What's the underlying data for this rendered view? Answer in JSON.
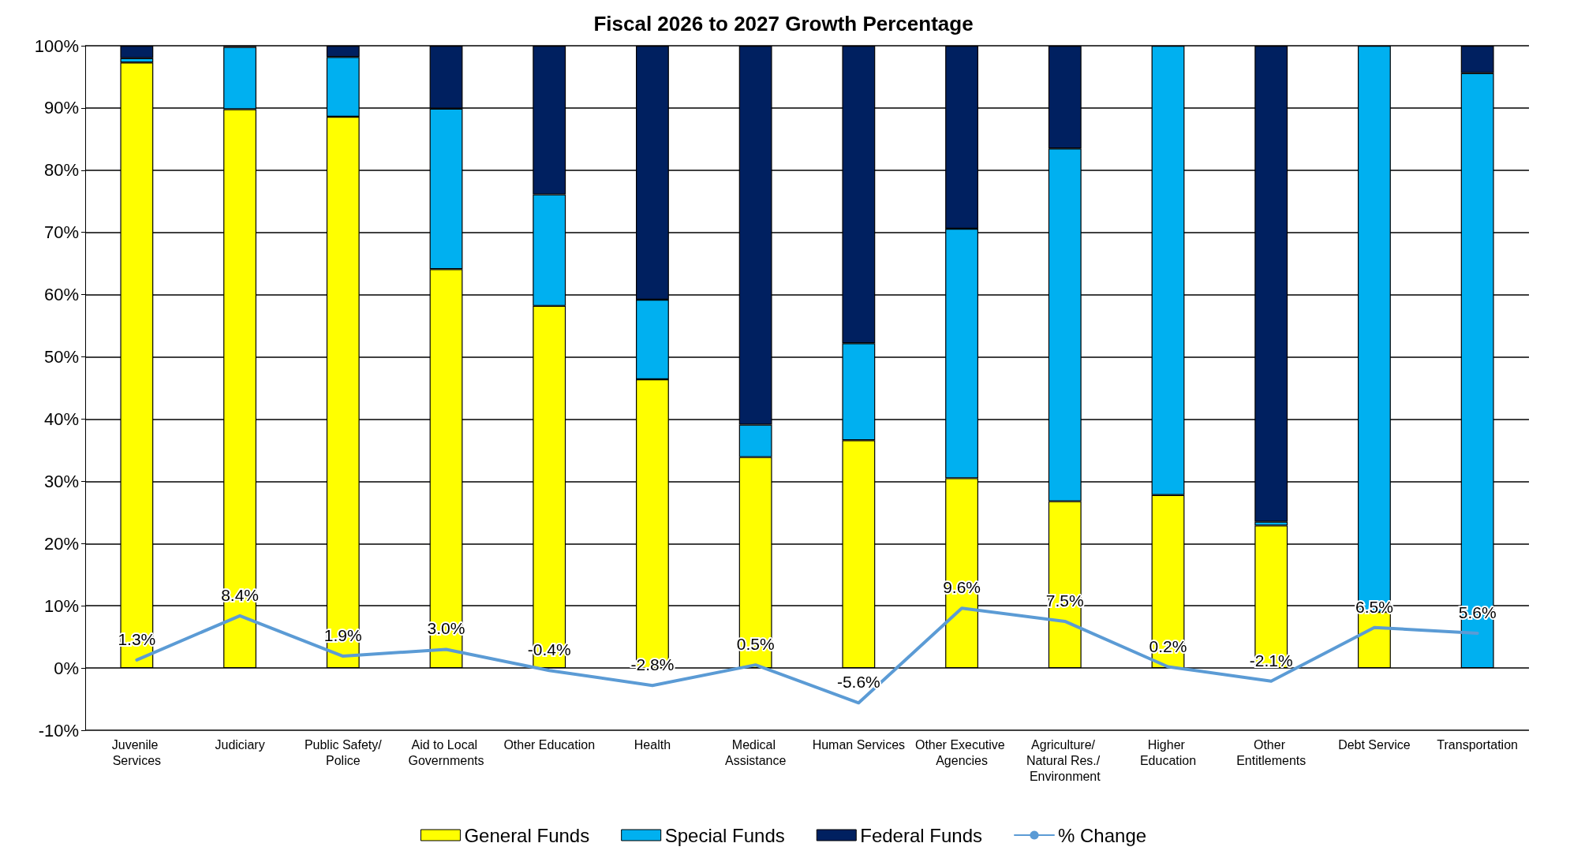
{
  "chart_data": {
    "type": "bar",
    "title": "Fiscal 2026 to 2027 Growth Percentage",
    "stacked": true,
    "categories": [
      "Juvenile Services",
      "Judiciary",
      "Public Safety/Police",
      "Aid to Local Governments",
      "Other Education",
      "Health",
      "Medical Assistance",
      "Human Services",
      "Other Executive Agencies",
      "Agriculture/ Natural Res./ Environment",
      "Higher Education",
      "Other Entitlements",
      "Debt Service",
      "Transportation"
    ],
    "series": [
      {
        "name": "General Funds",
        "color": "#ffff00",
        "values": [
          97.3,
          89.8,
          88.6,
          64.1,
          58.2,
          46.4,
          33.9,
          36.6,
          30.5,
          26.8,
          27.8,
          22.9,
          9.0,
          null
        ]
      },
      {
        "name": "Special Funds",
        "color": "#00b0f0",
        "values": [
          0.7,
          10.0,
          9.6,
          25.8,
          17.9,
          12.8,
          5.2,
          15.6,
          40.1,
          56.7,
          72.2,
          0.6,
          91.0,
          95.6
        ]
      },
      {
        "name": "Federal Funds",
        "color": "#002060",
        "values": [
          2.0,
          0.2,
          1.8,
          10.1,
          23.9,
          40.8,
          60.9,
          47.8,
          29.4,
          16.5,
          null,
          76.5,
          null,
          4.4
        ]
      },
      {
        "name": "% Change",
        "type": "line",
        "color": "#5b9bd5",
        "values": [
          1.3,
          8.4,
          1.9,
          3.0,
          -0.4,
          -2.8,
          0.5,
          -5.6,
          9.6,
          7.5,
          0.2,
          -2.1,
          6.5,
          5.6
        ],
        "value_labels": [
          "1.3%",
          "8.4%",
          "1.9%",
          "3.0%",
          "-0.4%",
          "-2.8%",
          "0.5%",
          "-5.6%",
          "9.6%",
          "7.5%",
          "0.2%",
          "-2.1%",
          "6.5%",
          "5.6%"
        ]
      }
    ],
    "ylim": [
      -10,
      100
    ],
    "yticks": [
      {
        "value": -10,
        "label": "-10%"
      },
      {
        "value": 0,
        "label": "0%"
      },
      {
        "value": 10,
        "label": "10%"
      },
      {
        "value": 20,
        "label": "20%"
      },
      {
        "value": 30,
        "label": "30%"
      },
      {
        "value": 40,
        "label": "40%"
      },
      {
        "value": 50,
        "label": "50%"
      },
      {
        "value": 60,
        "label": "60%"
      },
      {
        "value": 70,
        "label": "70%"
      },
      {
        "value": 80,
        "label": "80%"
      },
      {
        "value": 90,
        "label": "90%"
      },
      {
        "value": 100,
        "label": "100%"
      }
    ],
    "grid": "y",
    "legend": "bottom",
    "marker": "none",
    "line_style": "solid"
  }
}
